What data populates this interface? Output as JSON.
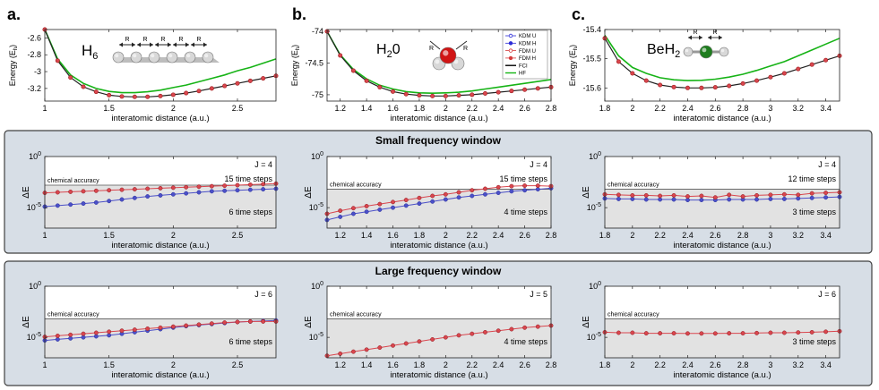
{
  "panel_labels": [
    "a.",
    "b.",
    "c."
  ],
  "windows": [
    {
      "title": "Small frequency window"
    },
    {
      "title": "Large frequency window"
    }
  ],
  "molecules": [
    {
      "name": "H",
      "sub": "6",
      "R_label": "R"
    },
    {
      "name": "H",
      "sub": "2",
      "suffix": "0",
      "R_label": "R"
    },
    {
      "name": "BeH",
      "sub": "2",
      "R_label": "R"
    }
  ],
  "labels": {
    "energy_ylabel": "Energy (E",
    "energy_ylabel_sub": "h",
    "energy_ylabel_end": ")",
    "delta_ylabel": "ΔE",
    "xlabel": "interatomic distance (a.u.)",
    "chemical_accuracy": "chemical accuracy"
  },
  "legend": [
    {
      "label": "KDM U",
      "color": "#2b2bd6",
      "marker": "open"
    },
    {
      "label": "KDM H",
      "color": "#2b2bd6",
      "marker": "filled"
    },
    {
      "label": "FDM U",
      "color": "#d43a3a",
      "marker": "open"
    },
    {
      "label": "FDM H",
      "color": "#d43a3a",
      "marker": "filled"
    },
    {
      "label": "FCI",
      "color": "#000000",
      "marker": "line"
    },
    {
      "label": "HF",
      "color": "#11b511",
      "marker": "line"
    }
  ],
  "colors": {
    "blue": "#4b50c8",
    "red": "#d9464e",
    "darkred": "#9b1a1a",
    "green": "#16b316",
    "band": "#e2e2e2",
    "box": "#d7dee6"
  },
  "chart_data": [
    {
      "id": "a_energy",
      "type": "line",
      "ylabel": "Energy (Eh)",
      "xlabel": "interatomic distance (a.u.)",
      "xlim": [
        1.0,
        2.8
      ],
      "ylim": [
        -3.35,
        -2.5
      ],
      "xticks": [
        "1",
        "1.5",
        "2",
        "2.5"
      ],
      "xtick_values": [
        1,
        1.5,
        2,
        2.5
      ],
      "yticks": [
        "-2.6",
        "-2.8",
        "-3",
        "-3.2"
      ],
      "ytick_values": [
        -2.6,
        -2.8,
        -3,
        -3.2
      ],
      "fci": {
        "x": [
          1.0,
          1.1,
          1.2,
          1.3,
          1.4,
          1.5,
          1.6,
          1.7,
          1.8,
          1.9,
          2.0,
          2.1,
          2.2,
          2.3,
          2.4,
          2.5,
          2.6,
          2.7,
          2.8
        ],
        "y": [
          -2.5,
          -2.87,
          -3.07,
          -3.18,
          -3.24,
          -3.28,
          -3.295,
          -3.3,
          -3.3,
          -3.29,
          -3.275,
          -3.255,
          -3.23,
          -3.2,
          -3.17,
          -3.14,
          -3.11,
          -3.08,
          -3.05
        ]
      },
      "hf": {
        "x": [
          1.0,
          1.1,
          1.2,
          1.3,
          1.4,
          1.5,
          1.6,
          1.7,
          1.8,
          1.9,
          2.0,
          2.1,
          2.2,
          2.3,
          2.4,
          2.5,
          2.6,
          2.7,
          2.8
        ],
        "y": [
          -2.5,
          -2.85,
          -3.04,
          -3.14,
          -3.2,
          -3.235,
          -3.25,
          -3.25,
          -3.24,
          -3.22,
          -3.19,
          -3.16,
          -3.12,
          -3.08,
          -3.04,
          -2.99,
          -2.95,
          -2.9,
          -2.85
        ]
      }
    },
    {
      "id": "b_energy",
      "type": "line",
      "ylabel": "Energy (Eh)",
      "xlabel": "interatomic distance (a.u.)",
      "xlim": [
        1.1,
        2.8
      ],
      "ylim": [
        -75.1,
        -73.97
      ],
      "xticks": [
        "1.2",
        "1.4",
        "1.6",
        "1.8",
        "2",
        "2.2",
        "2.4",
        "2.6",
        "2.8"
      ],
      "xtick_values": [
        1.2,
        1.4,
        1.6,
        1.8,
        2.0,
        2.2,
        2.4,
        2.6,
        2.8
      ],
      "yticks": [
        "-74",
        "-74.5",
        "-75"
      ],
      "ytick_values": [
        -74,
        -74.5,
        -75
      ],
      "fci": {
        "x": [
          1.1,
          1.2,
          1.3,
          1.4,
          1.5,
          1.6,
          1.7,
          1.8,
          1.9,
          2.0,
          2.1,
          2.2,
          2.3,
          2.4,
          2.5,
          2.6,
          2.7,
          2.8
        ],
        "y": [
          -74.0,
          -74.38,
          -74.62,
          -74.78,
          -74.88,
          -74.95,
          -74.99,
          -75.01,
          -75.02,
          -75.02,
          -75.01,
          -75.0,
          -74.98,
          -74.96,
          -74.94,
          -74.92,
          -74.9,
          -74.88
        ]
      },
      "hf": {
        "x": [
          1.1,
          1.2,
          1.3,
          1.4,
          1.5,
          1.6,
          1.7,
          1.8,
          1.9,
          2.0,
          2.1,
          2.2,
          2.3,
          2.4,
          2.5,
          2.6,
          2.7,
          2.8
        ],
        "y": [
          -74.0,
          -74.37,
          -74.6,
          -74.75,
          -74.85,
          -74.91,
          -74.95,
          -74.97,
          -74.975,
          -74.97,
          -74.96,
          -74.94,
          -74.91,
          -74.88,
          -74.85,
          -74.82,
          -74.79,
          -74.76
        ]
      }
    },
    {
      "id": "c_energy",
      "type": "line",
      "ylabel": "Energy (Eh)",
      "xlabel": "interatomic distance (a.u.)",
      "xlim": [
        1.8,
        3.5
      ],
      "ylim": [
        -15.645,
        -15.4
      ],
      "xticks": [
        "1.8",
        "2",
        "2.2",
        "2.4",
        "2.6",
        "2.8",
        "3",
        "3.2",
        "3.4"
      ],
      "xtick_values": [
        1.8,
        2.0,
        2.2,
        2.4,
        2.6,
        2.8,
        3.0,
        3.2,
        3.4
      ],
      "yticks": [
        "-15.4",
        "-15.5",
        "-15.6"
      ],
      "ytick_values": [
        -15.4,
        -15.5,
        -15.6
      ],
      "fci": {
        "x": [
          1.8,
          1.9,
          2.0,
          2.1,
          2.2,
          2.3,
          2.4,
          2.5,
          2.6,
          2.7,
          2.8,
          2.9,
          3.0,
          3.1,
          3.2,
          3.3,
          3.4,
          3.5
        ],
        "y": [
          -15.43,
          -15.51,
          -15.55,
          -15.575,
          -15.59,
          -15.597,
          -15.6,
          -15.6,
          -15.598,
          -15.593,
          -15.585,
          -15.575,
          -15.563,
          -15.55,
          -15.535,
          -15.52,
          -15.505,
          -15.49
        ]
      },
      "hf": {
        "x": [
          1.8,
          1.9,
          2.0,
          2.1,
          2.2,
          2.3,
          2.4,
          2.5,
          2.6,
          2.7,
          2.8,
          2.9,
          3.0,
          3.1,
          3.2,
          3.3,
          3.4,
          3.5
        ],
        "y": [
          -15.42,
          -15.49,
          -15.53,
          -15.55,
          -15.565,
          -15.572,
          -15.575,
          -15.574,
          -15.57,
          -15.563,
          -15.553,
          -15.54,
          -15.525,
          -15.51,
          -15.49,
          -15.47,
          -15.45,
          -15.43
        ]
      }
    },
    {
      "id": "a_small",
      "type": "scatter",
      "ylabel": "ΔE",
      "xlim": [
        1.0,
        2.8
      ],
      "ylog": [
        -7,
        0
      ],
      "xticks": [
        "1",
        "1.5",
        "2",
        "2.5"
      ],
      "xtick_values": [
        1,
        1.5,
        2,
        2.5
      ],
      "yticks": [
        "10^0",
        "10^-5"
      ],
      "ytick_values": [
        0,
        -5
      ],
      "chem_acc_log": -2.8,
      "J": "J = 4",
      "upper": "15 time steps",
      "lower": "6 time steps",
      "series": [
        {
          "name": "KDM H",
          "x": [
            1.0,
            1.1,
            1.2,
            1.3,
            1.4,
            1.5,
            1.6,
            1.7,
            1.8,
            1.9,
            2.0,
            2.1,
            2.2,
            2.3,
            2.4,
            2.5,
            2.6,
            2.7,
            2.8
          ],
          "y": [
            -4.9,
            -4.8,
            -4.7,
            -4.6,
            -4.5,
            -4.35,
            -4.2,
            -4.05,
            -3.9,
            -3.8,
            -3.7,
            -3.6,
            -3.5,
            -3.4,
            -3.35,
            -3.3,
            -3.25,
            -3.2,
            -3.15
          ]
        },
        {
          "name": "FDM H",
          "x": [
            1.0,
            1.1,
            1.2,
            1.3,
            1.4,
            1.5,
            1.6,
            1.7,
            1.8,
            1.9,
            2.0,
            2.1,
            2.2,
            2.3,
            2.4,
            2.5,
            2.6,
            2.7,
            2.8
          ],
          "y": [
            -3.55,
            -3.5,
            -3.45,
            -3.4,
            -3.35,
            -3.3,
            -3.25,
            -3.2,
            -3.15,
            -3.1,
            -3.05,
            -3.0,
            -2.95,
            -2.9,
            -2.85,
            -2.8,
            -2.75,
            -2.7,
            -2.65
          ]
        }
      ]
    },
    {
      "id": "b_small",
      "type": "scatter",
      "ylabel": "ΔE",
      "xlim": [
        1.1,
        2.8
      ],
      "ylog": [
        -7,
        0
      ],
      "xticks": [
        "1.2",
        "1.4",
        "1.6",
        "1.8",
        "2",
        "2.2",
        "2.4",
        "2.6",
        "2.8"
      ],
      "xtick_values": [
        1.2,
        1.4,
        1.6,
        1.8,
        2.0,
        2.2,
        2.4,
        2.6,
        2.8
      ],
      "yticks": [
        "10^0",
        "10^-5"
      ],
      "ytick_values": [
        0,
        -5
      ],
      "chem_acc_log": -3.2,
      "J": "J = 4",
      "upper": "15 time steps",
      "lower": "4 time steps",
      "series": [
        {
          "name": "KDM H",
          "x": [
            1.1,
            1.2,
            1.3,
            1.4,
            1.5,
            1.6,
            1.7,
            1.8,
            1.9,
            2.0,
            2.1,
            2.2,
            2.3,
            2.4,
            2.5,
            2.6,
            2.7,
            2.8
          ],
          "y": [
            -6.2,
            -5.9,
            -5.6,
            -5.4,
            -5.2,
            -5.0,
            -4.8,
            -4.6,
            -4.4,
            -4.2,
            -4.0,
            -3.85,
            -3.7,
            -3.55,
            -3.4,
            -3.3,
            -3.2,
            -3.1
          ]
        },
        {
          "name": "FDM H",
          "x": [
            1.1,
            1.2,
            1.3,
            1.4,
            1.5,
            1.6,
            1.7,
            1.8,
            1.9,
            2.0,
            2.1,
            2.2,
            2.3,
            2.4,
            2.5,
            2.6,
            2.7,
            2.8
          ],
          "y": [
            -5.6,
            -5.3,
            -5.05,
            -4.85,
            -4.65,
            -4.45,
            -4.25,
            -4.05,
            -3.85,
            -3.7,
            -3.5,
            -3.3,
            -3.15,
            -3.0,
            -2.9,
            -2.85,
            -2.85,
            -2.9
          ]
        }
      ]
    },
    {
      "id": "c_small",
      "type": "scatter",
      "ylabel": "ΔE",
      "xlim": [
        1.8,
        3.5
      ],
      "ylog": [
        -7,
        0
      ],
      "xticks": [
        "1.8",
        "2",
        "2.2",
        "2.4",
        "2.6",
        "2.8",
        "3",
        "3.2",
        "3.4"
      ],
      "xtick_values": [
        1.8,
        2.0,
        2.2,
        2.4,
        2.6,
        2.8,
        3.0,
        3.2,
        3.4
      ],
      "yticks": [
        "10^0",
        "10^-5"
      ],
      "ytick_values": [
        0,
        -5
      ],
      "chem_acc_log": -3.2,
      "J": "J = 4",
      "upper": "12 time steps",
      "lower": "3 time steps",
      "series": [
        {
          "name": "KDM H",
          "x": [
            1.8,
            1.9,
            2.0,
            2.1,
            2.2,
            2.3,
            2.4,
            2.5,
            2.6,
            2.7,
            2.8,
            2.9,
            3.0,
            3.1,
            3.2,
            3.3,
            3.4,
            3.5
          ],
          "y": [
            -4.1,
            -4.15,
            -4.15,
            -4.2,
            -4.2,
            -4.2,
            -4.25,
            -4.25,
            -4.25,
            -4.2,
            -4.2,
            -4.2,
            -4.15,
            -4.15,
            -4.1,
            -4.05,
            -4.0,
            -3.95
          ]
        },
        {
          "name": "FDM H",
          "x": [
            1.8,
            1.9,
            2.0,
            2.1,
            2.2,
            2.3,
            2.4,
            2.5,
            2.6,
            2.7,
            2.8,
            2.9,
            3.0,
            3.1,
            3.2,
            3.3,
            3.4,
            3.5
          ],
          "y": [
            -3.7,
            -3.75,
            -3.8,
            -3.8,
            -3.85,
            -3.8,
            -3.9,
            -3.85,
            -4.0,
            -3.75,
            -3.9,
            -3.8,
            -3.75,
            -3.7,
            -3.75,
            -3.6,
            -3.55,
            -3.5
          ]
        }
      ]
    },
    {
      "id": "a_large",
      "type": "scatter",
      "ylabel": "ΔE",
      "xlim": [
        1.0,
        2.8
      ],
      "ylog": [
        -7,
        0
      ],
      "xticks": [
        "1",
        "1.5",
        "2",
        "2.5"
      ],
      "xtick_values": [
        1,
        1.5,
        2,
        2.5
      ],
      "yticks": [
        "10^0",
        "10^-5"
      ],
      "ytick_values": [
        0,
        -5
      ],
      "chem_acc_log": -3.2,
      "J": "J = 6",
      "upper": "",
      "lower": "6 time steps",
      "series": [
        {
          "name": "KDM H",
          "x": [
            1.0,
            1.1,
            1.2,
            1.3,
            1.4,
            1.5,
            1.6,
            1.7,
            1.8,
            1.9,
            2.0,
            2.1,
            2.2,
            2.3,
            2.4,
            2.5,
            2.6,
            2.7,
            2.8
          ],
          "y": [
            -5.3,
            -5.2,
            -5.1,
            -5.0,
            -4.9,
            -4.8,
            -4.65,
            -4.5,
            -4.35,
            -4.2,
            -4.05,
            -3.9,
            -3.8,
            -3.7,
            -3.6,
            -3.5,
            -3.45,
            -3.4,
            -3.35
          ]
        },
        {
          "name": "FDM H",
          "x": [
            1.0,
            1.1,
            1.2,
            1.3,
            1.4,
            1.5,
            1.6,
            1.7,
            1.8,
            1.9,
            2.0,
            2.1,
            2.2,
            2.3,
            2.4,
            2.5,
            2.6,
            2.7,
            2.8
          ],
          "y": [
            -4.95,
            -4.85,
            -4.75,
            -4.65,
            -4.55,
            -4.45,
            -4.35,
            -4.25,
            -4.15,
            -4.05,
            -3.95,
            -3.85,
            -3.75,
            -3.65,
            -3.55,
            -3.5,
            -3.45,
            -3.45,
            -3.45
          ]
        }
      ]
    },
    {
      "id": "b_large",
      "type": "scatter",
      "ylabel": "ΔE",
      "xlim": [
        1.1,
        2.8
      ],
      "ylog": [
        -7,
        0
      ],
      "xticks": [
        "1.2",
        "1.4",
        "1.6",
        "1.8",
        "2",
        "2.2",
        "2.4",
        "2.6",
        "2.8"
      ],
      "xtick_values": [
        1.2,
        1.4,
        1.6,
        1.8,
        2.0,
        2.2,
        2.4,
        2.6,
        2.8
      ],
      "yticks": [
        "10^0",
        "10^-5"
      ],
      "ytick_values": [
        0,
        -5
      ],
      "chem_acc_log": -3.2,
      "J": "J = 5",
      "upper": "",
      "lower": "4 time steps",
      "series": [
        {
          "name": "FDM H",
          "x": [
            1.1,
            1.2,
            1.3,
            1.4,
            1.5,
            1.6,
            1.7,
            1.8,
            1.9,
            2.0,
            2.1,
            2.2,
            2.3,
            2.4,
            2.5,
            2.6,
            2.7,
            2.8
          ],
          "y": [
            -6.8,
            -6.6,
            -6.4,
            -6.2,
            -6.0,
            -5.8,
            -5.6,
            -5.4,
            -5.2,
            -5.0,
            -4.8,
            -4.65,
            -4.5,
            -4.35,
            -4.2,
            -4.05,
            -3.95,
            -3.85
          ]
        }
      ]
    },
    {
      "id": "c_large",
      "type": "scatter",
      "ylabel": "ΔE",
      "xlim": [
        1.8,
        3.5
      ],
      "ylog": [
        -7,
        0
      ],
      "xticks": [
        "1.8",
        "2",
        "2.2",
        "2.4",
        "2.6",
        "2.8",
        "3",
        "3.2",
        "3.4"
      ],
      "xtick_values": [
        1.8,
        2.0,
        2.2,
        2.4,
        2.6,
        2.8,
        3.0,
        3.2,
        3.4
      ],
      "yticks": [
        "10^0",
        "10^-5"
      ],
      "ytick_values": [
        0,
        -5
      ],
      "chem_acc_log": -3.2,
      "J": "J = 6",
      "upper": "",
      "lower": "3 time steps",
      "series": [
        {
          "name": "FDM H",
          "x": [
            1.8,
            1.9,
            2.0,
            2.1,
            2.2,
            2.3,
            2.4,
            2.5,
            2.6,
            2.7,
            2.8,
            2.9,
            3.0,
            3.1,
            3.2,
            3.3,
            3.4,
            3.5
          ],
          "y": [
            -4.5,
            -4.55,
            -4.55,
            -4.6,
            -4.6,
            -4.6,
            -4.62,
            -4.62,
            -4.62,
            -4.6,
            -4.6,
            -4.58,
            -4.55,
            -4.55,
            -4.52,
            -4.5,
            -4.45,
            -4.4
          ]
        }
      ]
    }
  ]
}
